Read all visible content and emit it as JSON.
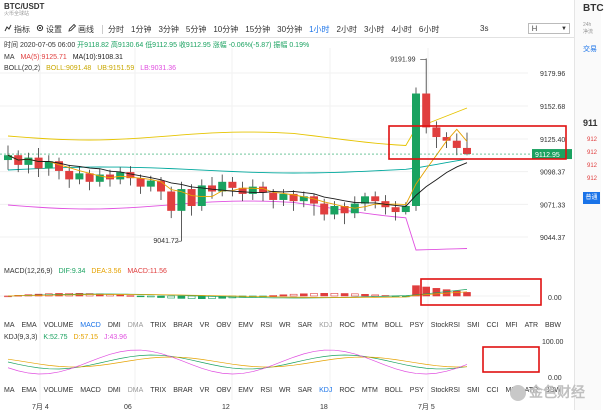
{
  "symbol": {
    "title": "BTC/USDT",
    "subtitle": "火币全球站"
  },
  "toolbar": {
    "indicator_label": "指标",
    "settings_label": "设置",
    "draw_label": "画线",
    "timeframes": [
      "分时",
      "1分钟",
      "3分钟",
      "5分钟",
      "10分钟",
      "15分钟",
      "30分钟",
      "1小时",
      "2小时",
      "3小时",
      "4小时",
      "6小时"
    ],
    "active_timeframe": "1小时",
    "ms_label": "3s",
    "dropdown_value": "Ｈ"
  },
  "info_bar": {
    "time": "时间 2020-07-05 06:00",
    "open": "开9118.82",
    "high": "高9130.64",
    "low": "低9112.95",
    "close": "收9112.95",
    "change": "涨幅 -0.06%(-5.87)",
    "amplitude": "振幅 0.19%"
  },
  "ma": {
    "label": "MA",
    "ma5": "MA(5):9125.71",
    "ma10": "MA(10):9108.31"
  },
  "boll": {
    "label": "BOLL(20,2)",
    "boll": "BOLL:9091.48",
    "ub": "UB:9151.59",
    "lb": "LB:9031.36"
  },
  "macd": {
    "label": "MACD(12,26,9)",
    "dif": "DIF:9.34",
    "dea": "DEA:3.56",
    "macd": "MACD:11.56"
  },
  "kdj": {
    "label": "KDJ(9,3,3)",
    "k": "K:52.75",
    "d": "D:57.15",
    "j": "J:43.96"
  },
  "price_axis": [
    "9179.96",
    "9152.68",
    "9125.40",
    "9098.37",
    "9071.33",
    "9044.37"
  ],
  "price_labels": {
    "high": "9191.99",
    "low": "9041.72",
    "current": "9112.95"
  },
  "macd_axis": "0.00",
  "kdj_axis": [
    "100.00",
    "0.00"
  ],
  "date_axis": [
    "7月 4",
    "06",
    "12",
    "18",
    "7月 5"
  ],
  "indicator_tabs": [
    "MA",
    "EMA",
    "VOLUME",
    "MACD",
    "DMI",
    "DMA",
    "TRIX",
    "BRAR",
    "VR",
    "OBV",
    "EMV",
    "RSI",
    "WR",
    "SAR",
    "KDJ",
    "ROC",
    "MTM",
    "BOLL",
    "PSY",
    "StockRSI",
    "SMI",
    "CCI",
    "MFI",
    "ATR",
    "BBW"
  ],
  "active_tab_top": "MACD",
  "active_tab_bottom": "KDJ",
  "dim_tabs": [
    "DMA",
    "KDJ"
  ],
  "side": {
    "title": "BTC",
    "sub1": "24h",
    "sub2": "净流",
    "trade": "交易",
    "price": "911",
    "rows": [
      "912",
      "912",
      "912",
      "912",
      "912"
    ],
    "button": "普通"
  },
  "watermark": "金色财经",
  "colors": {
    "up": "#1aa260",
    "down": "#e03e3e",
    "accent": "#1a73e8",
    "ma5": "#e5a200",
    "ma10": "#1a1a1a",
    "boll_mid": "#e6c400",
    "ub": "#00a89d",
    "lb": "#e050e0"
  }
}
